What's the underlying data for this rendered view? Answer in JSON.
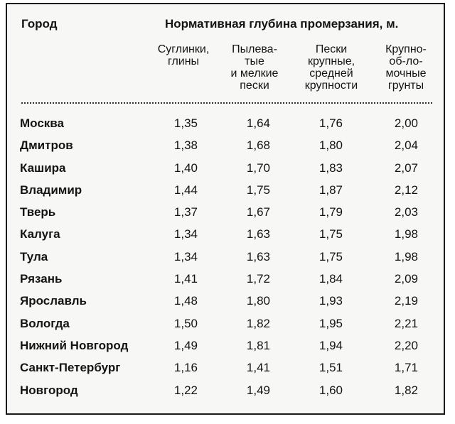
{
  "table": {
    "city_header": "Город",
    "group_header": "Нормативная глубина промерзания, м.",
    "column_headers": [
      "Суглинки,\nглины",
      "Пылева-\nтые\nи мелкие\nпески",
      "Пески\nкрупные,\nсредней\nкрупности",
      "Крупно-\nоб-ло-\nмочные\nгрунты"
    ],
    "rows": [
      {
        "city": "Москва",
        "values": [
          "1,35",
          "1,64",
          "1,76",
          "2,00"
        ]
      },
      {
        "city": "Дмитров",
        "values": [
          "1,38",
          "1,68",
          "1,80",
          "2,04"
        ]
      },
      {
        "city": "Кашира",
        "values": [
          "1,40",
          "1,70",
          "1,83",
          "2,07"
        ]
      },
      {
        "city": "Владимир",
        "values": [
          "1,44",
          "1,75",
          "1,87",
          "2,12"
        ]
      },
      {
        "city": "Тверь",
        "values": [
          "1,37",
          "1,67",
          "1,79",
          "2,03"
        ]
      },
      {
        "city": "Калуга",
        "values": [
          "1,34",
          "1,63",
          "1,75",
          "1,98"
        ]
      },
      {
        "city": "Тула",
        "values": [
          "1,34",
          "1,63",
          "1,75",
          "1,98"
        ]
      },
      {
        "city": "Рязань",
        "values": [
          "1,41",
          "1,72",
          "1,84",
          "2,09"
        ]
      },
      {
        "city": "Ярославль",
        "values": [
          "1,48",
          "1,80",
          "1,93",
          "2,19"
        ]
      },
      {
        "city": "Вологда",
        "values": [
          "1,50",
          "1,82",
          "1,95",
          "2,21"
        ]
      },
      {
        "city": "Нижний Новгород",
        "values": [
          "1,49",
          "1,81",
          "1,94",
          "2,20"
        ]
      },
      {
        "city": "Санкт-Петербург",
        "values": [
          "1,16",
          "1,41",
          "1,51",
          "1,71"
        ]
      },
      {
        "city": "Новгород",
        "values": [
          "1,22",
          "1,49",
          "1,60",
          "1,82"
        ]
      }
    ]
  }
}
